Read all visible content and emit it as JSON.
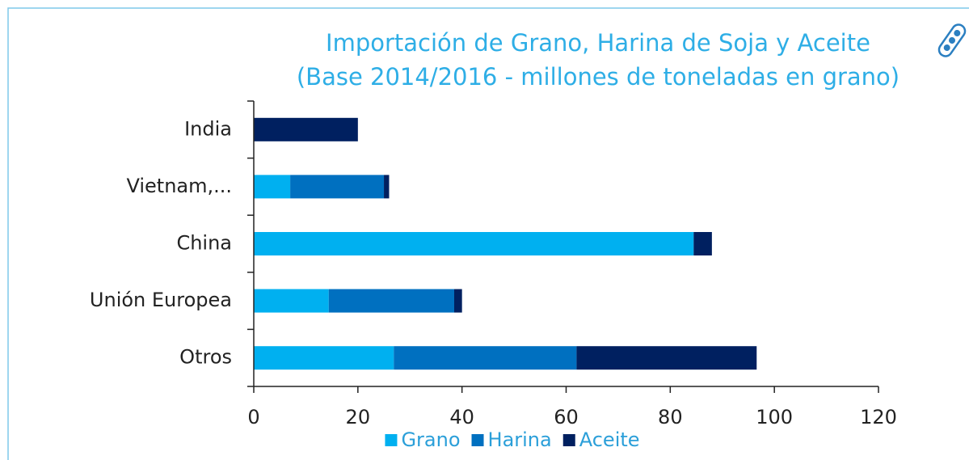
{
  "chart_data": {
    "type": "stacked-barh",
    "title": "Importación de Grano, Harina de Soja y Aceite",
    "subtitle": "(Base 2014/2016 - millones de toneladas en grano)",
    "categories": [
      "India",
      "Vietnam,...",
      "China",
      "Unión Europea",
      "Otros"
    ],
    "series": [
      {
        "name": "Grano",
        "color": "#00b0f0",
        "values": [
          0,
          7,
          84.5,
          14.4,
          26.9
        ]
      },
      {
        "name": "Harina",
        "color": "#0070c0",
        "values": [
          0,
          18,
          0,
          24.1,
          35.1
        ]
      },
      {
        "name": "Aceite",
        "color": "#002060",
        "values": [
          20,
          1,
          3.5,
          1.5,
          34.6
        ]
      }
    ],
    "xlim": [
      0,
      120
    ],
    "xticks": [
      0,
      20,
      40,
      60,
      80,
      100,
      120
    ]
  }
}
